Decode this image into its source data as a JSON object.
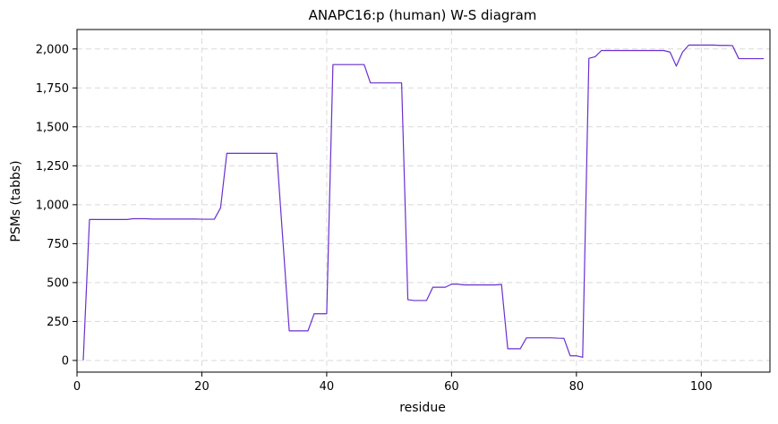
{
  "chart_data": {
    "type": "line",
    "title": "ANAPC16:p (human) W-S diagram",
    "xlabel": "residue",
    "ylabel": "PSMs (tabbs)",
    "xlim": [
      0,
      111
    ],
    "ylim": [
      -75,
      2125
    ],
    "xticks": [
      0,
      20,
      40,
      60,
      80,
      100
    ],
    "yticks": [
      0,
      250,
      500,
      750,
      1000,
      1250,
      1500,
      1750,
      2000
    ],
    "ytick_labels": [
      "0",
      "250",
      "500",
      "750",
      "1,000",
      "1,250",
      "1,500",
      "1,750",
      "2,000"
    ],
    "grid": true,
    "line_color": "#6a2fd1",
    "series": [
      {
        "x": [
          1,
          2,
          3,
          4,
          5,
          6,
          7,
          8,
          9,
          10,
          11,
          12,
          13,
          14,
          15,
          16,
          17,
          18,
          19,
          20,
          21,
          22,
          23,
          24,
          25,
          26,
          27,
          28,
          29,
          30,
          31,
          32,
          33,
          34,
          35,
          36,
          37,
          38,
          39,
          40,
          41,
          42,
          43,
          44,
          45,
          46,
          47,
          48,
          49,
          50,
          51,
          52,
          53,
          54,
          55,
          56,
          57,
          58,
          59,
          60,
          61,
          62,
          63,
          64,
          65,
          66,
          67,
          68,
          69,
          70,
          71,
          72,
          73,
          74,
          75,
          76,
          77,
          78,
          79,
          80,
          81,
          82,
          83,
          84,
          85,
          86,
          87,
          88,
          89,
          90,
          91,
          92,
          93,
          94,
          95,
          96,
          97,
          98,
          99,
          100,
          101,
          102,
          103,
          104,
          105,
          106,
          107,
          108,
          109,
          110
        ],
        "y": [
          0,
          905,
          905,
          905,
          905,
          905,
          905,
          905,
          910,
          910,
          910,
          908,
          908,
          908,
          908,
          908,
          908,
          908,
          908,
          907,
          907,
          907,
          980,
          1330,
          1330,
          1330,
          1330,
          1330,
          1330,
          1330,
          1330,
          1330,
          760,
          190,
          190,
          190,
          190,
          300,
          300,
          300,
          1900,
          1900,
          1900,
          1900,
          1900,
          1900,
          1782,
          1782,
          1782,
          1782,
          1782,
          1782,
          390,
          385,
          385,
          385,
          470,
          470,
          470,
          490,
          490,
          485,
          485,
          485,
          485,
          485,
          485,
          488,
          75,
          75,
          75,
          145,
          145,
          145,
          145,
          145,
          143,
          142,
          30,
          30,
          20,
          1940,
          1950,
          1990,
          1990,
          1990,
          1990,
          1990,
          1990,
          1990,
          1990,
          1990,
          1990,
          1990,
          1980,
          1890,
          1980,
          2025,
          2025,
          2025,
          2025,
          2025,
          2023,
          2023,
          2022,
          1938,
          1938,
          1938,
          1938,
          1938
        ]
      }
    ]
  }
}
